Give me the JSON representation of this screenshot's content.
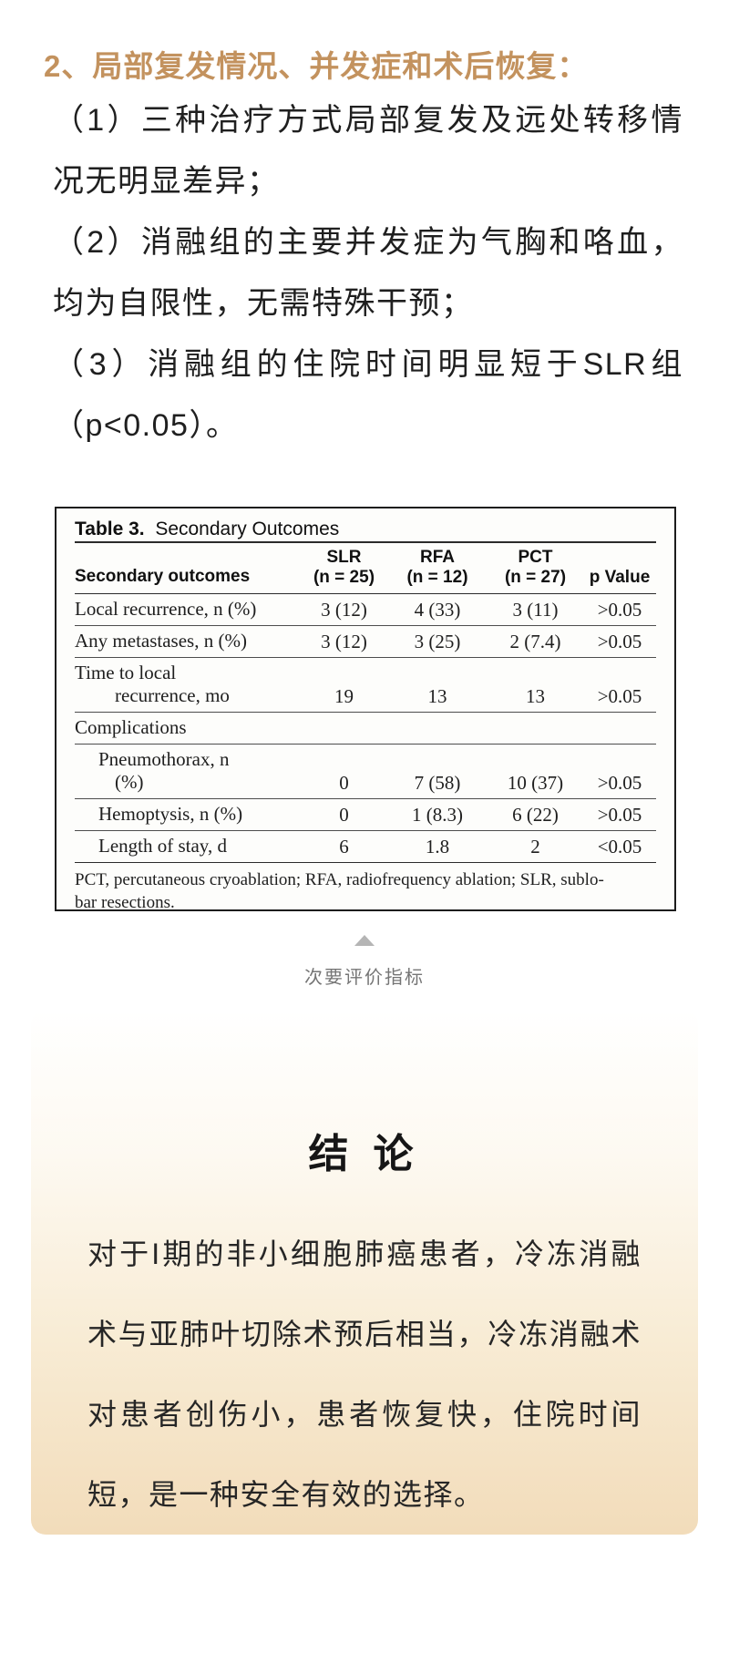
{
  "section": {
    "heading": "2、局部复发情况、并发症和术后恢复：",
    "heading_color": "#c3925e",
    "paragraphs": [
      "（1）三种治疗方式局部复发及远处转移情况无明显差异；",
      "（2）消融组的主要并发症为气胸和咯血，均为自限性，无需特殊干预；",
      "（3）消融组的住院时间明显短于SLR组（p<0.05）。"
    ]
  },
  "figure": {
    "table": {
      "title_bold": "Table 3.",
      "title_rest": "Secondary Outcomes",
      "header": {
        "stub": "Secondary outcomes",
        "groups": [
          {
            "line1": "SLR",
            "line2": "(n = 25)"
          },
          {
            "line1": "RFA",
            "line2": "(n = 12)"
          },
          {
            "line1": "PCT",
            "line2": "(n = 27)"
          }
        ],
        "p": "p Value"
      },
      "rows": [
        {
          "label_lines": [
            "Local recurrence, n (%)"
          ],
          "values": [
            "3 (12)",
            "4 (33)",
            "3 (11)",
            ">0.05"
          ]
        },
        {
          "label_lines": [
            "Any metastases, n (%)"
          ],
          "values": [
            "3 (12)",
            "3 (25)",
            "2 (7.4)",
            ">0.05"
          ]
        },
        {
          "label_lines": [
            "Time to local",
            "recurrence, mo"
          ],
          "values": [
            "19",
            "13",
            "13",
            ">0.05"
          ]
        },
        {
          "label_lines": [
            "Complications"
          ],
          "section": true,
          "values": [
            "",
            "",
            "",
            ""
          ]
        },
        {
          "label_lines": [
            "Pneumothorax, n",
            "(%)"
          ],
          "indent": 1,
          "values": [
            "0",
            "7 (58)",
            "10 (37)",
            ">0.05"
          ]
        },
        {
          "label_lines": [
            "Hemoptysis, n (%)"
          ],
          "indent": 1,
          "values": [
            "0",
            "1 (8.3)",
            "6 (22)",
            ">0.05"
          ]
        },
        {
          "label_lines": [
            "Length of stay, d"
          ],
          "indent": 1,
          "values": [
            "6",
            "1.8",
            "2",
            "<0.05"
          ]
        }
      ],
      "footnote_lines": [
        "PCT, percutaneous cryoablation; RFA, radiofrequency ablation; SLR, sublo-",
        "bar resections."
      ]
    },
    "marker_color": "#b5b5b5",
    "caption": "次要评价指标",
    "caption_color": "#757575"
  },
  "conclusion": {
    "title": "结 论",
    "body": "对于I期的非小细胞肺癌患者，冷冻消融术与亚肺叶切除术预后相当，冷冻消融术对患者创伤小，患者恢复快，住院时间短，是一种安全有效的选择。",
    "bg_top": "#ffffff",
    "bg_bottom": "#f2dcba"
  }
}
